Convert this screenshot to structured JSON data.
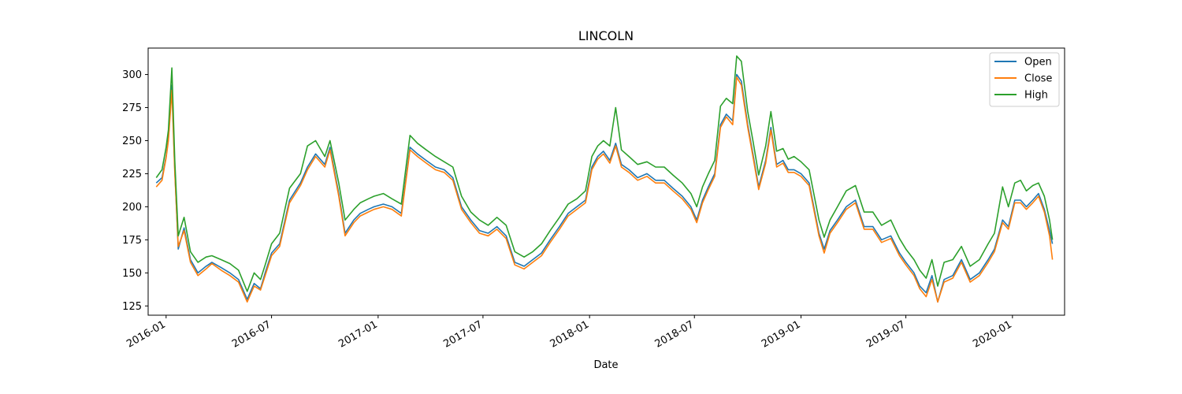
{
  "chart_data": {
    "type": "line",
    "title": "LINCOLN",
    "xlabel": "Date",
    "ylabel": "",
    "x_range": [
      "2015-12-01",
      "2020-03-31"
    ],
    "ylim": [
      118,
      320
    ],
    "y_ticks": [
      125,
      150,
      175,
      200,
      225,
      250,
      275,
      300
    ],
    "x_ticks": [
      "2016-01",
      "2016-07",
      "2017-01",
      "2017-07",
      "2018-01",
      "2018-07",
      "2019-01",
      "2019-07",
      "2020-01"
    ],
    "grid": false,
    "legend_position": "top-right",
    "dates": [
      "2015-12-15",
      "2015-12-25",
      "2016-01-01",
      "2016-01-05",
      "2016-01-11",
      "2016-01-16",
      "2016-01-22",
      "2016-02-01",
      "2016-02-12",
      "2016-02-25",
      "2016-03-10",
      "2016-03-20",
      "2016-04-05",
      "2016-04-20",
      "2016-05-05",
      "2016-05-20",
      "2016-06-01",
      "2016-06-12",
      "2016-06-20",
      "2016-07-01",
      "2016-07-15",
      "2016-08-01",
      "2016-08-20",
      "2016-09-01",
      "2016-09-15",
      "2016-10-01",
      "2016-10-10",
      "2016-10-25",
      "2016-11-05",
      "2016-11-20",
      "2016-12-01",
      "2016-12-15",
      "2016-12-25",
      "2017-01-10",
      "2017-01-25",
      "2017-02-10",
      "2017-02-25",
      "2017-03-10",
      "2017-03-25",
      "2017-04-10",
      "2017-04-25",
      "2017-05-10",
      "2017-05-25",
      "2017-06-10",
      "2017-06-25",
      "2017-07-10",
      "2017-07-25",
      "2017-08-10",
      "2017-08-25",
      "2017-09-10",
      "2017-09-25",
      "2017-10-10",
      "2017-10-25",
      "2017-11-10",
      "2017-11-25",
      "2017-12-10",
      "2017-12-25",
      "2018-01-05",
      "2018-01-15",
      "2018-01-25",
      "2018-02-05",
      "2018-02-15",
      "2018-02-25",
      "2018-03-10",
      "2018-03-25",
      "2018-04-10",
      "2018-04-25",
      "2018-05-10",
      "2018-05-25",
      "2018-06-10",
      "2018-06-25",
      "2018-07-05",
      "2018-07-15",
      "2018-07-25",
      "2018-08-05",
      "2018-08-15",
      "2018-08-25",
      "2018-09-05",
      "2018-09-12",
      "2018-09-20",
      "2018-10-01",
      "2018-10-10",
      "2018-10-20",
      "2018-11-01",
      "2018-11-10",
      "2018-11-20",
      "2018-12-01",
      "2018-12-10",
      "2018-12-20",
      "2019-01-01",
      "2019-01-15",
      "2019-02-01",
      "2019-02-10",
      "2019-02-20",
      "2019-03-05",
      "2019-03-20",
      "2019-04-05",
      "2019-04-20",
      "2019-05-05",
      "2019-05-20",
      "2019-06-05",
      "2019-06-20",
      "2019-07-01",
      "2019-07-15",
      "2019-07-25",
      "2019-08-05",
      "2019-08-15",
      "2019-08-25",
      "2019-09-05",
      "2019-09-20",
      "2019-10-05",
      "2019-10-20",
      "2019-11-05",
      "2019-11-20",
      "2019-12-01",
      "2019-12-15",
      "2019-12-25",
      "2020-01-05",
      "2020-01-15",
      "2020-01-25",
      "2020-02-05",
      "2020-02-15",
      "2020-02-25",
      "2020-03-05",
      "2020-03-10"
    ],
    "series": [
      {
        "name": "Open",
        "color": "#1f77b4",
        "values": [
          218,
          222,
          238,
          252,
          292,
          228,
          168,
          184,
          160,
          150,
          155,
          158,
          154,
          150,
          145,
          130,
          142,
          138,
          150,
          165,
          172,
          205,
          218,
          230,
          240,
          232,
          245,
          210,
          180,
          190,
          195,
          198,
          200,
          202,
          200,
          195,
          245,
          240,
          235,
          230,
          228,
          222,
          200,
          190,
          182,
          180,
          185,
          178,
          158,
          155,
          160,
          165,
          175,
          185,
          195,
          200,
          205,
          230,
          238,
          242,
          235,
          248,
          232,
          228,
          222,
          225,
          220,
          220,
          214,
          208,
          200,
          190,
          205,
          215,
          225,
          262,
          270,
          265,
          300,
          295,
          262,
          240,
          215,
          235,
          260,
          232,
          235,
          228,
          228,
          225,
          218,
          180,
          168,
          182,
          190,
          200,
          205,
          185,
          185,
          175,
          178,
          165,
          158,
          150,
          140,
          135,
          148,
          128,
          145,
          148,
          160,
          145,
          150,
          160,
          168,
          190,
          185,
          205,
          205,
          200,
          205,
          210,
          198,
          182,
          172
        ]
      },
      {
        "name": "Close",
        "color": "#ff7f0e",
        "values": [
          215,
          220,
          237,
          250,
          288,
          226,
          170,
          182,
          158,
          148,
          153,
          157,
          152,
          148,
          143,
          128,
          140,
          137,
          148,
          163,
          170,
          203,
          216,
          228,
          238,
          230,
          243,
          208,
          178,
          188,
          193,
          196,
          198,
          200,
          198,
          193,
          243,
          238,
          233,
          228,
          226,
          220,
          198,
          188,
          180,
          178,
          183,
          176,
          156,
          153,
          158,
          163,
          173,
          183,
          193,
          198,
          203,
          228,
          236,
          240,
          233,
          246,
          230,
          226,
          220,
          223,
          218,
          218,
          212,
          206,
          198,
          188,
          203,
          213,
          223,
          260,
          268,
          262,
          298,
          292,
          260,
          238,
          213,
          233,
          258,
          230,
          233,
          226,
          226,
          223,
          216,
          178,
          165,
          180,
          188,
          198,
          203,
          183,
          183,
          173,
          176,
          163,
          156,
          148,
          138,
          132,
          145,
          128,
          143,
          146,
          158,
          143,
          148,
          158,
          166,
          188,
          183,
          203,
          203,
          198,
          203,
          208,
          196,
          178,
          160
        ]
      },
      {
        "name": "High",
        "color": "#2ca02c",
        "values": [
          222,
          228,
          245,
          258,
          305,
          235,
          178,
          192,
          166,
          158,
          162,
          163,
          160,
          157,
          152,
          136,
          150,
          145,
          156,
          172,
          180,
          214,
          225,
          246,
          250,
          238,
          250,
          218,
          190,
          198,
          203,
          206,
          208,
          210,
          206,
          202,
          254,
          248,
          243,
          238,
          234,
          230,
          208,
          196,
          190,
          186,
          192,
          186,
          166,
          162,
          166,
          172,
          182,
          192,
          202,
          206,
          212,
          238,
          246,
          250,
          246,
          275,
          243,
          238,
          232,
          234,
          230,
          230,
          224,
          218,
          210,
          200,
          215,
          225,
          235,
          276,
          282,
          278,
          314,
          310,
          272,
          250,
          224,
          246,
          272,
          242,
          244,
          236,
          238,
          234,
          228,
          190,
          177,
          190,
          200,
          212,
          216,
          196,
          196,
          186,
          190,
          176,
          168,
          160,
          152,
          146,
          160,
          140,
          158,
          160,
          170,
          155,
          160,
          172,
          180,
          215,
          200,
          218,
          220,
          212,
          216,
          218,
          208,
          190,
          175
        ]
      }
    ]
  }
}
